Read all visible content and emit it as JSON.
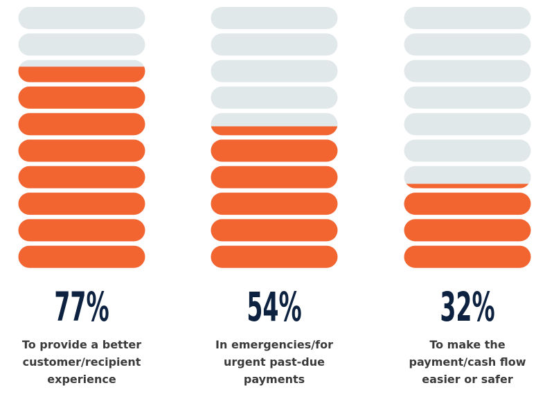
{
  "chart_data": {
    "type": "pictograph",
    "categories": [
      [
        "To provide a better",
        "customer/recipient",
        "experience"
      ],
      [
        "In emergencies/for",
        "urgent past-due",
        "payments"
      ],
      [
        "To make the",
        "payment/cash flow",
        "easier or safer"
      ]
    ],
    "values": [
      77,
      54,
      32
    ],
    "value_labels": [
      "77%",
      "54%",
      "32%"
    ],
    "ylim": [
      0,
      100
    ],
    "color": "#f26430",
    "track_color": "#e1e8ea"
  }
}
